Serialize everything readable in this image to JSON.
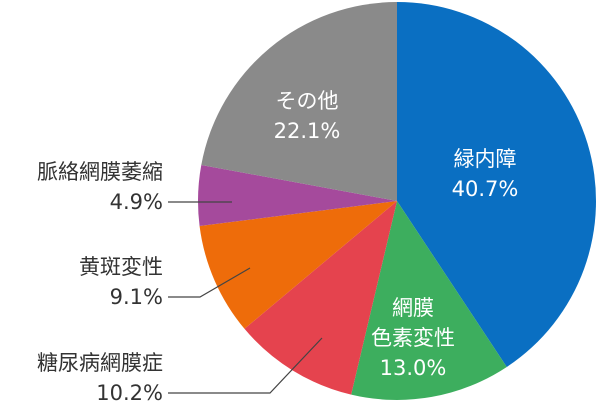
{
  "chart_data": {
    "type": "pie",
    "start": "top",
    "direction": "clockwise",
    "slices": [
      {
        "label": "緑内障",
        "lines": [
          "緑内障"
        ],
        "value": 40.7,
        "value_label": "40.7%",
        "color": "#0a6fc2",
        "label_position": "inside"
      },
      {
        "label": "網膜色素変性",
        "lines": [
          "網膜",
          "色素変性"
        ],
        "value": 13.0,
        "value_label": "13.0%",
        "color": "#3dae5e",
        "label_position": "inside"
      },
      {
        "label": "糖尿病網膜症",
        "lines": [
          "糖尿病網膜症"
        ],
        "value": 10.2,
        "value_label": "10.2%",
        "color": "#e5434e",
        "label_position": "outside"
      },
      {
        "label": "黄斑変性",
        "lines": [
          "黄斑変性"
        ],
        "value": 9.1,
        "value_label": "9.1%",
        "color": "#ee6c0a",
        "label_position": "outside"
      },
      {
        "label": "脈絡網膜萎縮",
        "lines": [
          "脈絡網膜萎縮"
        ],
        "value": 4.9,
        "value_label": "4.9%",
        "color": "#a54a9c",
        "label_position": "outside"
      },
      {
        "label": "その他",
        "lines": [
          "その他"
        ],
        "value": 22.1,
        "value_label": "22.1%",
        "color": "#8a8a8a",
        "label_position": "inside"
      }
    ]
  }
}
